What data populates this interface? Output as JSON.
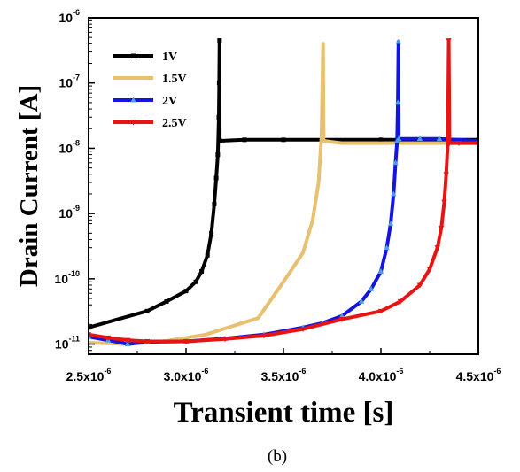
{
  "chart_data": {
    "type": "line",
    "xlabel": "Transient time [s]",
    "ylabel": "Drain Current [A]",
    "caption": "(b)",
    "x_scale": "linear",
    "y_scale": "log",
    "xlim": [
      2.5e-06,
      4.5e-06
    ],
    "ylim": [
      7e-12,
      1e-06
    ],
    "x_ticks": [
      {
        "value": 2.5e-06,
        "mantissa": "2.5x10",
        "exp": "-6"
      },
      {
        "value": 3e-06,
        "mantissa": "3.0x10",
        "exp": "-6"
      },
      {
        "value": 3.5e-06,
        "mantissa": "3.5x10",
        "exp": "-6"
      },
      {
        "value": 4e-06,
        "mantissa": "4.0x10",
        "exp": "-6"
      },
      {
        "value": 4.5e-06,
        "mantissa": "4.5x10",
        "exp": "-6"
      }
    ],
    "y_ticks": [
      {
        "value": 1e-11,
        "base": "10",
        "exp": "-11"
      },
      {
        "value": 1e-10,
        "base": "10",
        "exp": "-10"
      },
      {
        "value": 1e-09,
        "base": "10",
        "exp": "-9"
      },
      {
        "value": 1e-08,
        "base": "10",
        "exp": "-8"
      },
      {
        "value": 1e-07,
        "base": "10",
        "exp": "-7"
      },
      {
        "value": 1e-06,
        "base": "10",
        "exp": "-6"
      }
    ],
    "grid": false,
    "legend_position": "top-left",
    "series": [
      {
        "name": "1V",
        "color": "#000000",
        "marker": "square",
        "points": [
          [
            2.5e-06,
            1.8e-11
          ],
          [
            2.8e-06,
            3.2e-11
          ],
          [
            2.9e-06,
            4.5e-11
          ],
          [
            3e-06,
            6.5e-11
          ],
          [
            3.05e-06,
            9e-11
          ],
          [
            3.08e-06,
            1.3e-10
          ],
          [
            3.11e-06,
            2.3e-10
          ],
          [
            3.13e-06,
            5e-10
          ],
          [
            3.145e-06,
            1.4e-09
          ],
          [
            3.155e-06,
            3.5e-09
          ],
          [
            3.163e-06,
            8e-09
          ],
          [
            3.168e-06,
            3e-08
          ],
          [
            3.17e-06,
            1e-07
          ],
          [
            3.172e-06,
            4.5e-07
          ],
          [
            3.173e-06,
            1.3e-08
          ],
          [
            3.3e-06,
            1.35e-08
          ],
          [
            3.5e-06,
            1.35e-08
          ],
          [
            3.7e-06,
            1.35e-08
          ],
          [
            4e-06,
            1.35e-08
          ],
          [
            4.2e-06,
            1.35e-08
          ],
          [
            4.5e-06,
            1.35e-08
          ]
        ]
      },
      {
        "name": "1.5V",
        "color": "#E8C070",
        "marker": "none",
        "points": [
          [
            2.5e-06,
            1.05e-11
          ],
          [
            2.7e-06,
            1e-11
          ],
          [
            2.9e-06,
            1.12e-11
          ],
          [
            3.1e-06,
            1.4e-11
          ],
          [
            3.37e-06,
            2.5e-11
          ],
          [
            3.5e-06,
            9e-11
          ],
          [
            3.6e-06,
            2.5e-10
          ],
          [
            3.65e-06,
            8e-10
          ],
          [
            3.68e-06,
            3e-09
          ],
          [
            3.695e-06,
            1.5e-08
          ],
          [
            3.703e-06,
            4e-07
          ],
          [
            3.706e-06,
            1.3e-08
          ],
          [
            3.8e-06,
            1.2e-08
          ],
          [
            4e-06,
            1.2e-08
          ],
          [
            4.2e-06,
            1.2e-08
          ],
          [
            4.5e-06,
            1.2e-08
          ]
        ]
      },
      {
        "name": "2V",
        "color": "#1414E0",
        "marker": "triangle",
        "points": [
          [
            2.5e-06,
            1.3e-11
          ],
          [
            2.6e-06,
            1.15e-11
          ],
          [
            2.7e-06,
            1e-11
          ],
          [
            2.8e-06,
            1.08e-11
          ],
          [
            3e-06,
            1.1e-11
          ],
          [
            3.2e-06,
            1.22e-11
          ],
          [
            3.4e-06,
            1.4e-11
          ],
          [
            3.6e-06,
            1.8e-11
          ],
          [
            3.7e-06,
            2.1e-11
          ],
          [
            3.8e-06,
            2.7e-11
          ],
          [
            3.9e-06,
            4.5e-11
          ],
          [
            3.95e-06,
            7e-11
          ],
          [
            4e-06,
            1.3e-10
          ],
          [
            4.03e-06,
            3e-10
          ],
          [
            4.05e-06,
            7e-10
          ],
          [
            4.065e-06,
            2e-09
          ],
          [
            4.075e-06,
            6e-09
          ],
          [
            4.083e-06,
            1.3e-08
          ],
          [
            4.087e-06,
            5e-08
          ],
          [
            4.09e-06,
            4.3e-07
          ],
          [
            4.092e-06,
            1.4e-08
          ],
          [
            4.2e-06,
            1.4e-08
          ],
          [
            4.3e-06,
            1.4e-08
          ],
          [
            4.5e-06,
            1.3e-08
          ]
        ]
      },
      {
        "name": "2.5V",
        "color": "#E81414",
        "marker": "triangle-down",
        "points": [
          [
            2.5e-06,
            1.4e-11
          ],
          [
            2.6e-06,
            1.25e-11
          ],
          [
            2.7e-06,
            1.15e-11
          ],
          [
            2.8e-06,
            1.1e-11
          ],
          [
            3e-06,
            1.1e-11
          ],
          [
            3.2e-06,
            1.2e-11
          ],
          [
            3.4e-06,
            1.35e-11
          ],
          [
            3.6e-06,
            1.7e-11
          ],
          [
            3.8e-06,
            2.4e-11
          ],
          [
            4e-06,
            3.2e-11
          ],
          [
            4.1e-06,
            4.5e-11
          ],
          [
            4.2e-06,
            8e-11
          ],
          [
            4.25e-06,
            1.4e-10
          ],
          [
            4.29e-06,
            3e-10
          ],
          [
            4.31e-06,
            6e-10
          ],
          [
            4.325e-06,
            1.5e-09
          ],
          [
            4.335e-06,
            4e-09
          ],
          [
            4.343e-06,
            1.2e-08
          ],
          [
            4.348e-06,
            4.5e-07
          ],
          [
            4.352e-06,
            1.2e-08
          ],
          [
            4.4e-06,
            1.2e-08
          ],
          [
            4.5e-06,
            1.2e-08
          ]
        ]
      }
    ]
  }
}
